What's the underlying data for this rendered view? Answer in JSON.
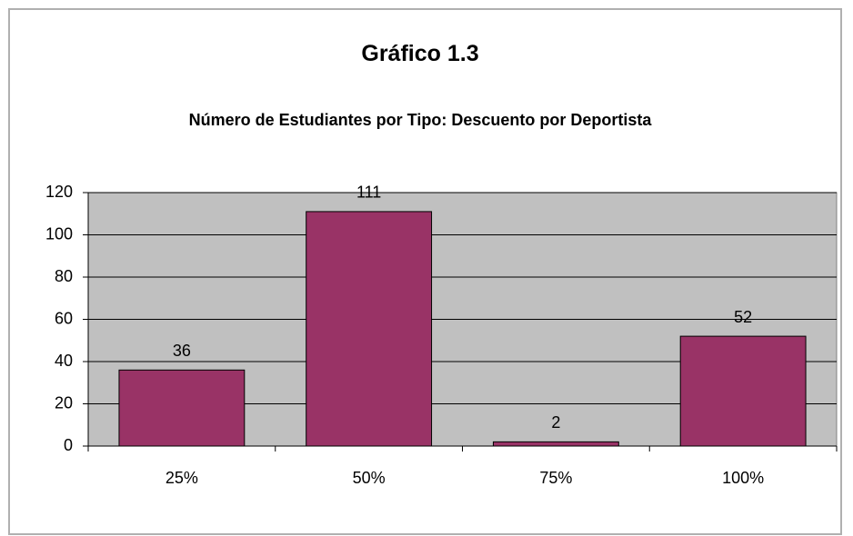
{
  "chart_data": {
    "type": "bar",
    "title": "Gráfico 1.3",
    "subtitle": "Número de Estudiantes por Tipo: Descuento por Deportista",
    "categories": [
      "25%",
      "50%",
      "75%",
      "100%"
    ],
    "values": [
      36,
      111,
      2,
      52
    ],
    "color": "#993366",
    "ylim": [
      0,
      120
    ],
    "yticks": [
      0,
      20,
      40,
      60,
      80,
      100,
      120
    ],
    "grid": true
  }
}
